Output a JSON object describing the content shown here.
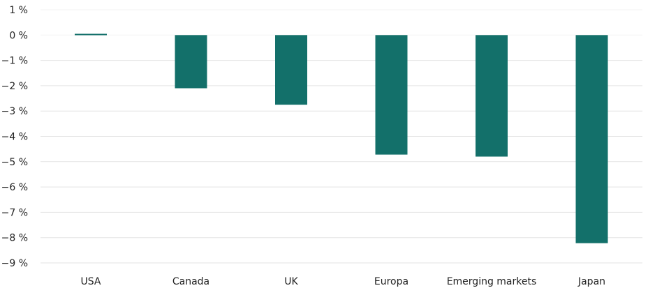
{
  "chart_data": {
    "type": "bar",
    "title": "",
    "xlabel": "",
    "ylabel": "",
    "categories": [
      "USA",
      "Canada",
      "UK",
      "Europa",
      "Emerging markets",
      "Japan"
    ],
    "values": [
      0.05,
      -2.1,
      -2.75,
      -4.72,
      -4.8,
      -8.22
    ],
    "unit": "%",
    "ylim": [
      -9,
      1
    ],
    "yticks": [
      1,
      0,
      -1,
      -2,
      -3,
      -4,
      -5,
      -6,
      -7,
      -8,
      -9
    ],
    "ytick_labels": [
      "1 %",
      "0 %",
      "−1 %",
      "−2 %",
      "−3 %",
      "−4 %",
      "−5 %",
      "−6 %",
      "−7 %",
      "−8 %",
      "−9 %"
    ],
    "grid": true,
    "legend": "none",
    "colors": {
      "bar": "#13706a",
      "grid": "#e3e3e3"
    }
  }
}
